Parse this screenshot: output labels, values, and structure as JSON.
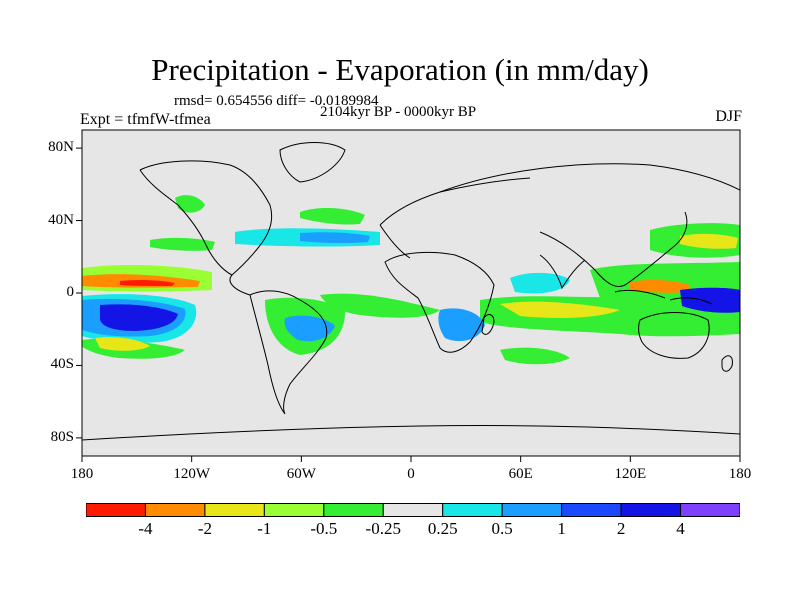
{
  "title": "Precipitation - Evaporation (in mm/day)",
  "stats": "rmsd= 0.654556 diff= -0.0189984",
  "experiment": "Expt = tfmfW-tfmea",
  "period": "2104kyr BP - 0000kyr BP",
  "season": "DJF",
  "lat_labels": [
    "80N",
    "40N",
    "0",
    "40S",
    "80S"
  ],
  "lon_labels": [
    "180",
    "120W",
    "60W",
    "0",
    "60E",
    "120E",
    "180"
  ],
  "colorbar": {
    "labels": [
      "-4",
      "-2",
      "-1",
      "-0.5",
      "-0.25",
      "0.25",
      "0.5",
      "1",
      "2",
      "4"
    ],
    "colors": [
      "#ff1a00",
      "#ff8c00",
      "#e6e619",
      "#99ff33",
      "#33ee33",
      "#e6e6e6",
      "#19e6e6",
      "#1a9eff",
      "#1c48ff",
      "#1414e6",
      "#8040ff"
    ]
  },
  "map_colors": {
    "ocean": "#e6e6e6",
    "coast": "#000000"
  }
}
